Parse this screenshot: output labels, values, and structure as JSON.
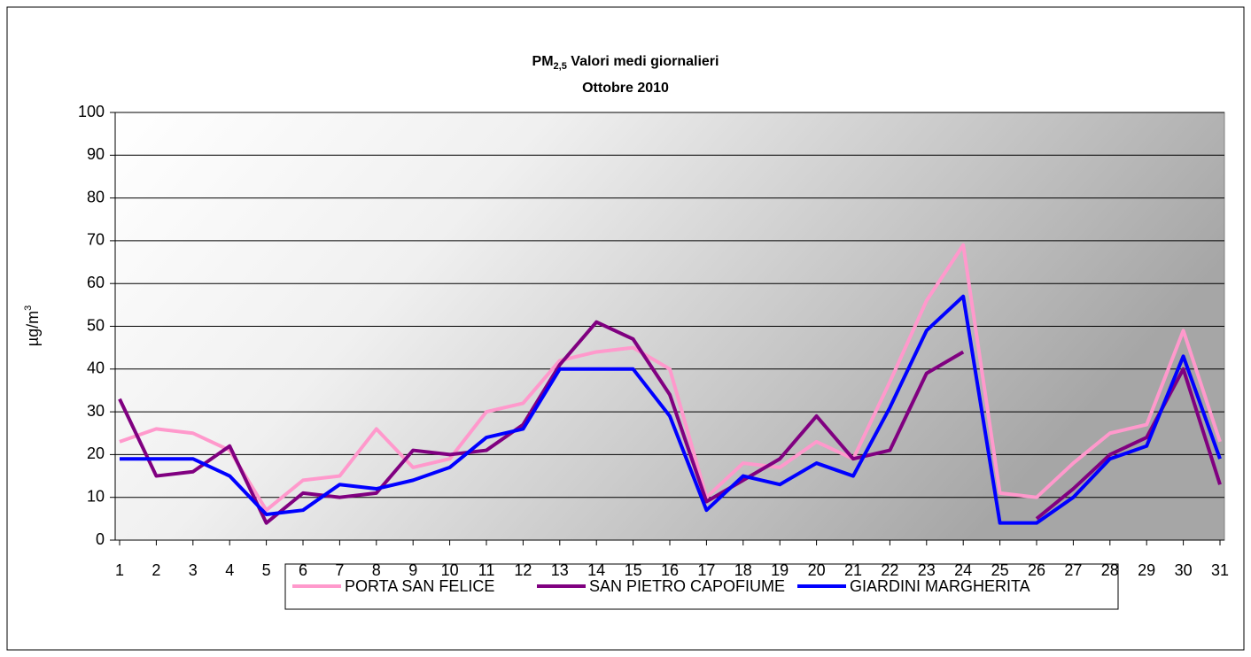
{
  "chart_data": {
    "type": "line",
    "title_parts": [
      "PM",
      "2,5",
      " Valori medi giornalieri"
    ],
    "subtitle": "Ottobre 2010",
    "ylabel_parts": [
      "µg/m",
      "3"
    ],
    "categories": [
      "1",
      "2",
      "3",
      "4",
      "5",
      "6",
      "7",
      "8",
      "9",
      "10",
      "11",
      "12",
      "13",
      "14",
      "15",
      "16",
      "17",
      "18",
      "19",
      "20",
      "21",
      "22",
      "23",
      "24",
      "25",
      "26",
      "27",
      "28",
      "29",
      "30",
      "31"
    ],
    "series": [
      {
        "name": "PORTA SAN FELICE",
        "color": "#ff99cc",
        "values": [
          23,
          26,
          25,
          21,
          7,
          14,
          15,
          26,
          17,
          19,
          30,
          32,
          42,
          44,
          45,
          40,
          10,
          18,
          17,
          23,
          19,
          37,
          56,
          69,
          11,
          10,
          18,
          25,
          27,
          49,
          23
        ]
      },
      {
        "name": "SAN PIETRO CAPOFIUME",
        "color": "#800080",
        "values": [
          33,
          15,
          16,
          22,
          4,
          11,
          10,
          11,
          21,
          20,
          21,
          27,
          41,
          51,
          47,
          34,
          9,
          14,
          19,
          29,
          19,
          21,
          39,
          44,
          null,
          5,
          12,
          20,
          24,
          40,
          13
        ]
      },
      {
        "name": "GIARDINI MARGHERITA",
        "color": "#0000ff",
        "values": [
          19,
          19,
          19,
          15,
          6,
          7,
          13,
          12,
          14,
          17,
          24,
          26,
          40,
          40,
          40,
          29,
          7,
          15,
          13,
          18,
          15,
          31,
          49,
          57,
          4,
          4,
          10,
          19,
          22,
          43,
          19
        ]
      }
    ],
    "ylim": [
      0,
      100
    ],
    "yticks": [
      0,
      10,
      20,
      30,
      40,
      50,
      60,
      70,
      80,
      90,
      100
    ],
    "grid": true,
    "legend": "bottom"
  }
}
